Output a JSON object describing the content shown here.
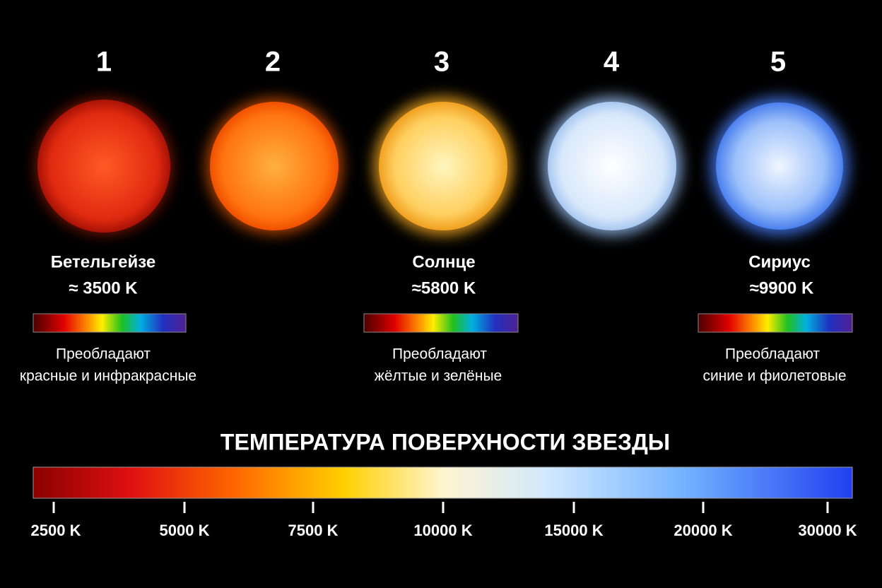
{
  "stars": [
    {
      "number": "1"
    },
    {
      "number": "2"
    },
    {
      "number": "3"
    },
    {
      "number": "4"
    },
    {
      "number": "5"
    }
  ],
  "labeled_stars": [
    {
      "name": "Бетельгейзе",
      "temperature": "≈ 3500 K",
      "description": [
        "Преобладают",
        "красные и инфракрасные"
      ]
    },
    {
      "name": "Солнце",
      "temperature": "≈5800 K",
      "description": [
        "Преобладают",
        "жёлтые и зелёные"
      ]
    },
    {
      "name": "Сириус",
      "temperature": "≈9900 K",
      "description": [
        "Преобладают",
        "синие и фиолетовые"
      ]
    }
  ],
  "scale": {
    "title": "ТЕМПЕРАТУРА ПОВЕРХНОСТИ ЗВЕЗДЫ",
    "ticks": [
      "2500 K",
      "5000 K",
      "7500 K",
      "10000 K",
      "15000 K",
      "20000 K",
      "30000 K"
    ]
  }
}
